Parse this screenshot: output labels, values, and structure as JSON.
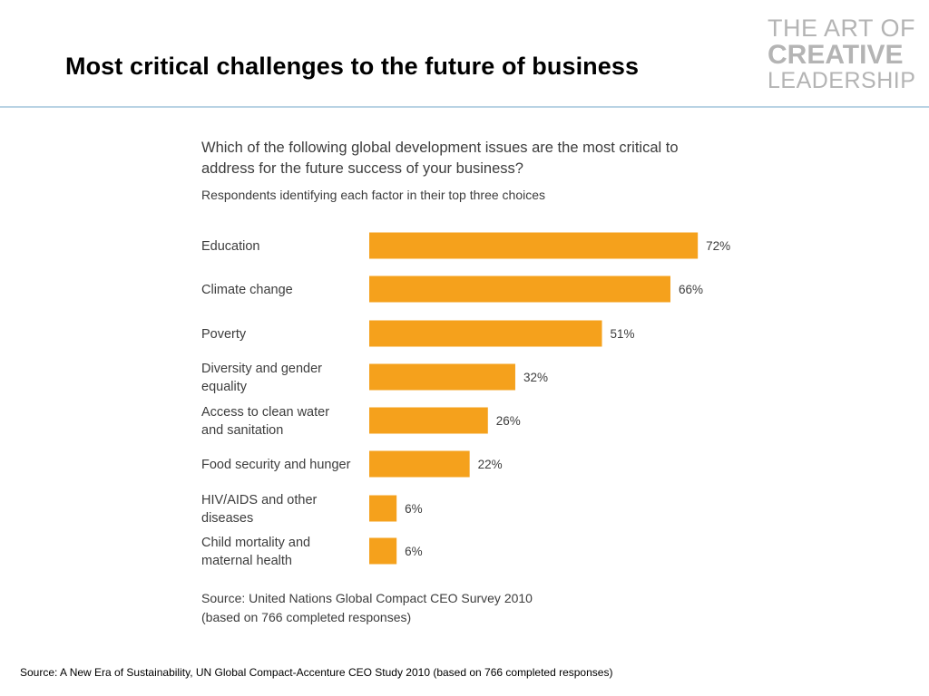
{
  "slide": {
    "title": "Most critical challenges to the future of business",
    "footer_source": "Source: A New Era of Sustainability, UN Global Compact-Accenture CEO Study 2010 (based on 766 completed responses)"
  },
  "logo": {
    "line1": "THE ART OF",
    "line2": "CREATIVE",
    "line3": "LEADERSHIP"
  },
  "colors": {
    "bar": "#f5a11c",
    "text": "#3d3d3d",
    "rule": "#b9d3e4"
  },
  "chart_data": {
    "type": "bar",
    "orientation": "horizontal",
    "title": "Which of the following global development issues are the most critical to address for the future success of your business?",
    "subtitle": "Respondents identifying each factor in their top three choices",
    "categories": [
      [
        "Education"
      ],
      [
        "Climate change"
      ],
      [
        "Poverty"
      ],
      [
        "Diversity and gender",
        "equality"
      ],
      [
        "Access to clean water",
        "and sanitation"
      ],
      [
        "Food security and hunger"
      ],
      [
        "HIV/AIDS and other",
        "diseases"
      ],
      [
        "Child mortality and",
        "maternal health"
      ]
    ],
    "values": [
      72,
      66,
      51,
      32,
      26,
      22,
      6,
      6
    ],
    "value_labels": [
      "72%",
      "66%",
      "51%",
      "32%",
      "26%",
      "22%",
      "6%",
      "6%"
    ],
    "unit": "%",
    "source_lines": [
      "Source: United Nations Global Compact CEO Survey 2010",
      "(based on 766 completed responses)"
    ],
    "grid": false
  }
}
